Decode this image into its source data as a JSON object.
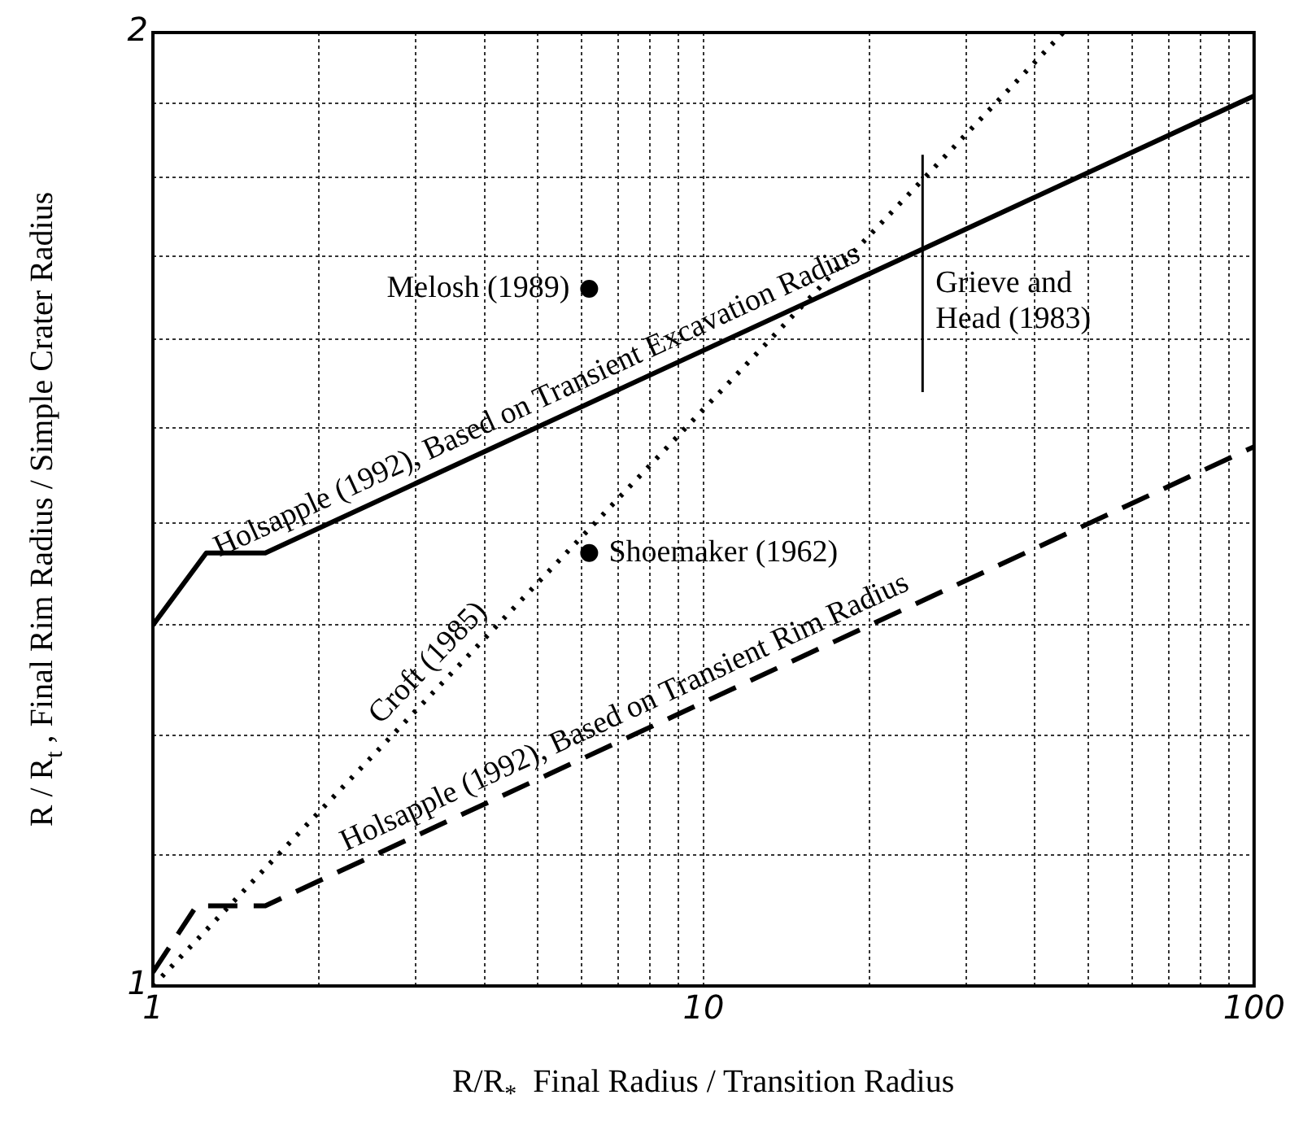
{
  "chart_data": {
    "type": "line",
    "xlabel": "R/R$_{*}$  Final Radius / Transition Radius",
    "ylabel": "R / R$_{t}$ , Final Rim Radius / Simple Crater Radius",
    "log": "xy",
    "grid": true,
    "xlim": [
      1,
      100
    ],
    "ylim": [
      1,
      2
    ],
    "xticks": [
      1,
      {
        "value": 2,
        "label": null
      },
      {
        "value": 3,
        "label": null
      },
      {
        "value": 4,
        "label": null
      },
      {
        "value": 5,
        "label": null
      },
      {
        "value": 6,
        "label": null
      },
      {
        "value": 7,
        "label": null
      },
      {
        "value": 8,
        "label": null
      },
      {
        "value": 9,
        "label": null
      },
      10,
      {
        "value": 20,
        "label": null
      },
      {
        "value": 30,
        "label": null
      },
      {
        "value": 40,
        "label": null
      },
      {
        "value": 50,
        "label": null
      },
      {
        "value": 60,
        "label": null
      },
      {
        "value": 70,
        "label": null
      },
      {
        "value": 80,
        "label": null
      },
      {
        "value": 90,
        "label": null
      },
      100
    ],
    "yticks": [
      1,
      {
        "value": 1.1,
        "label": null
      },
      {
        "value": 1.2,
        "label": null
      },
      {
        "value": 1.3,
        "label": null
      },
      {
        "value": 1.4,
        "label": null
      },
      {
        "value": 1.5,
        "label": null
      },
      {
        "value": 1.6,
        "label": null
      },
      {
        "value": 1.7,
        "label": null
      },
      {
        "value": 1.8,
        "label": null
      },
      {
        "value": 1.9,
        "label": null
      },
      2
    ],
    "series": [
      {
        "name": "Holsapple (1992), Based on Transient Excavation Radius",
        "color": "#000000",
        "line_style": "solid",
        "x": [
          1,
          1.25,
          1.6,
          100
        ],
        "values": [
          1.3,
          1.37,
          1.37,
          1.91
        ]
      },
      {
        "name": "Holsapple (1992), Based on Transient Rim Radius",
        "color": "#000000",
        "line_style": "dashed",
        "x": [
          1,
          1.2,
          1.6,
          100
        ],
        "values": [
          1.01,
          1.06,
          1.06,
          1.48
        ]
      },
      {
        "name": "Croft (1985)",
        "color": "#000000",
        "line_style": "dotted",
        "x": [
          1,
          45
        ],
        "values": [
          1,
          2
        ]
      },
      {
        "name": "Melosh (1989)",
        "type": "scatter",
        "color": "#000000",
        "marker": "circle",
        "x": [
          6.2
        ],
        "values": [
          1.66
        ]
      },
      {
        "name": "Shoemaker (1962)",
        "type": "scatter",
        "color": "#000000",
        "marker": "circle",
        "x": [
          6.2
        ],
        "values": [
          1.37
        ]
      },
      {
        "name": "Grieve and Head (1983)",
        "color": "#000000",
        "line_style": "solid",
        "x": [
          25,
          25
        ],
        "values": [
          1.54,
          1.83
        ]
      }
    ]
  }
}
